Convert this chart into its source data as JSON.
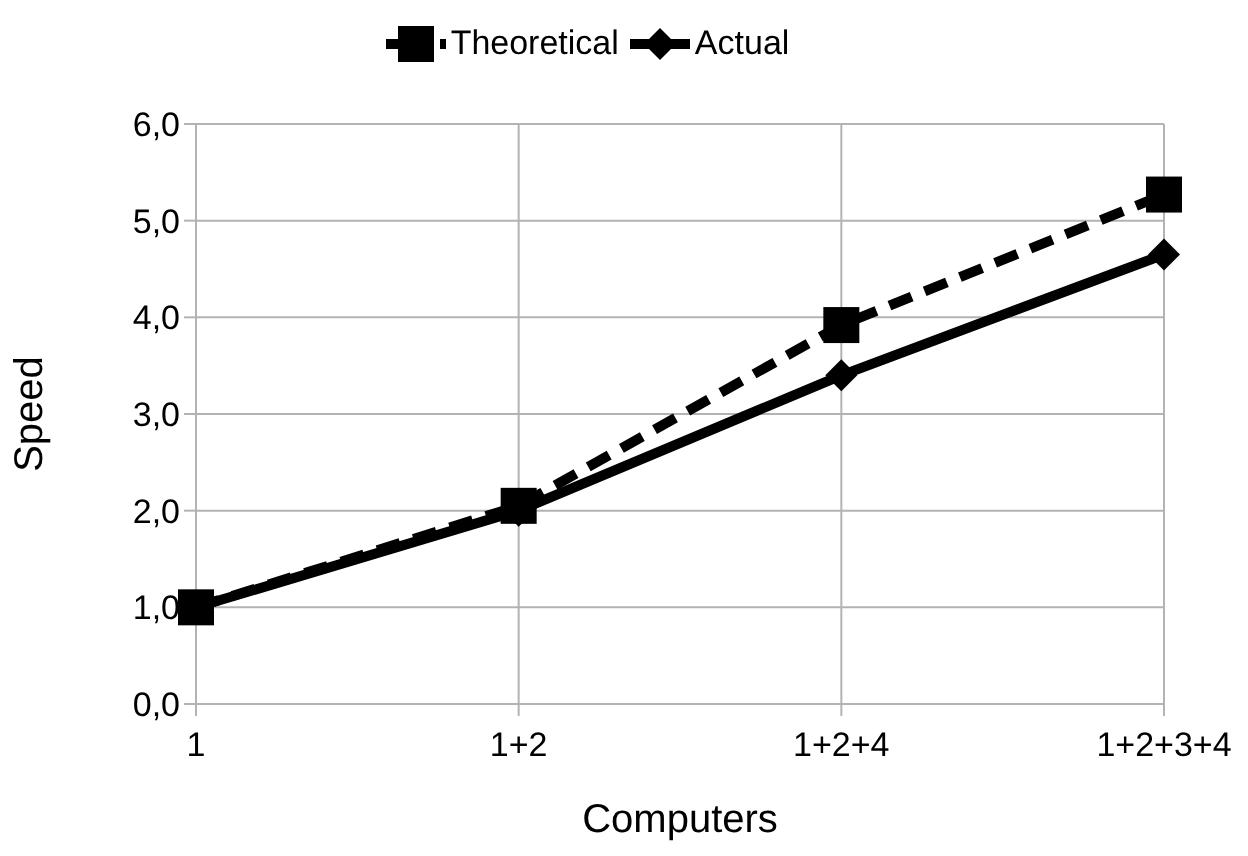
{
  "chart_data": {
    "type": "line",
    "xlabel": "Computers",
    "ylabel": "Speed",
    "categories": [
      "1",
      "1+2",
      "1+2+4",
      "1+2+3+4"
    ],
    "series": [
      {
        "name": "Theoretical",
        "color": "#000000",
        "values": [
          1.0,
          2.05,
          3.92,
          5.27
        ],
        "marker": "square",
        "line_style": "dashed"
      },
      {
        "name": "Actual",
        "color": "#000000",
        "values": [
          1.0,
          2.0,
          3.4,
          4.65
        ],
        "marker": "diamond",
        "line_style": "solid"
      }
    ],
    "ylim": [
      0,
      6
    ],
    "yticks": [
      {
        "value": 0,
        "label": "0,0"
      },
      {
        "value": 1,
        "label": "1,0"
      },
      {
        "value": 2,
        "label": "2,0"
      },
      {
        "value": 3,
        "label": "3,0"
      },
      {
        "value": 4,
        "label": "4,0"
      },
      {
        "value": 5,
        "label": "5,0"
      },
      {
        "value": 6,
        "label": "6,0"
      }
    ],
    "grid": true,
    "legend": "top"
  }
}
